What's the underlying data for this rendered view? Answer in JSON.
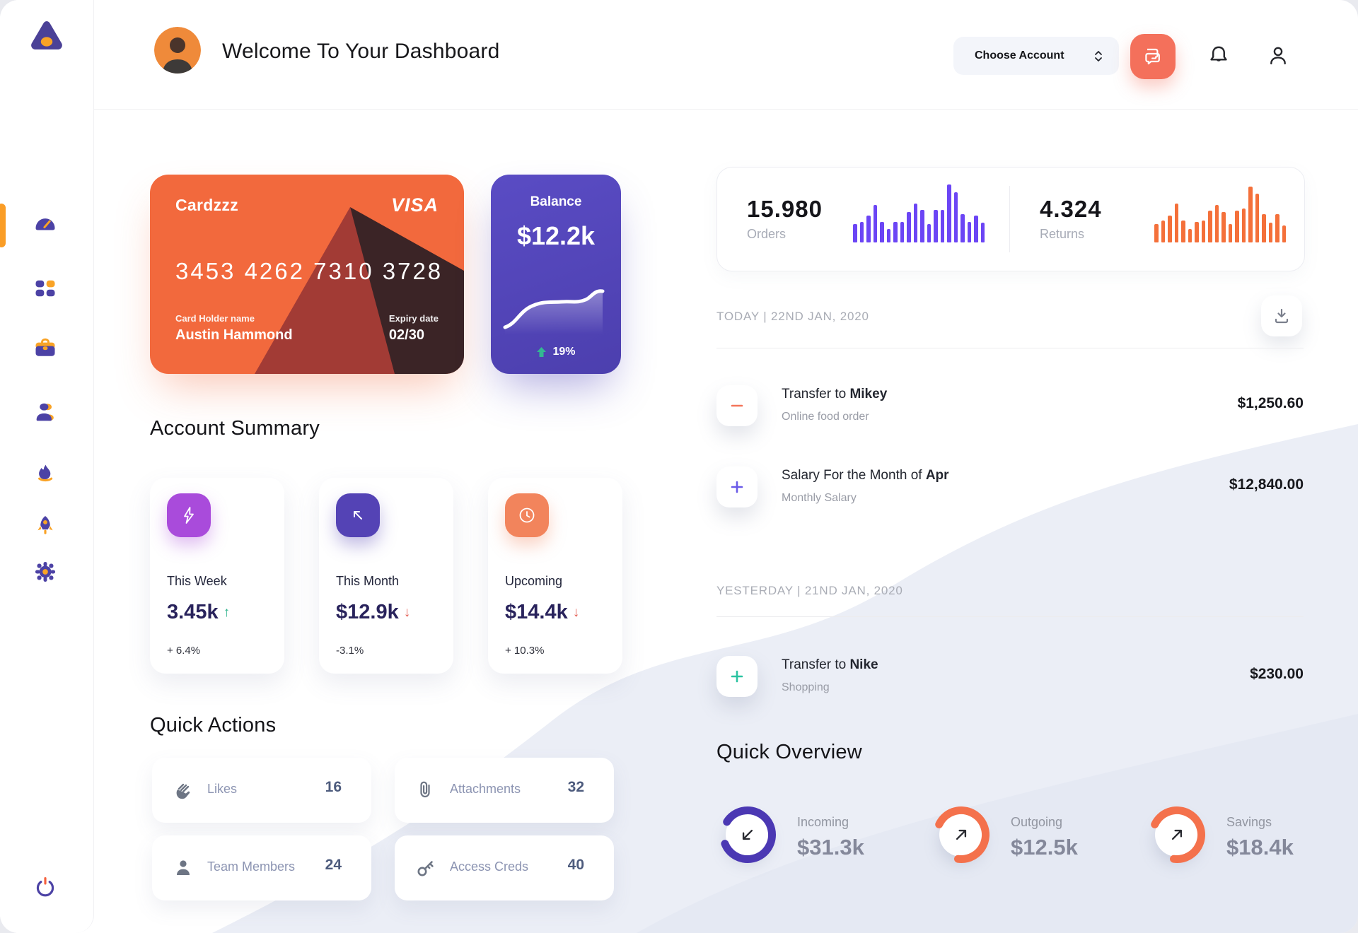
{
  "header": {
    "title": "Welcome To Your Dashboard",
    "account_select": "Choose Account",
    "icons": [
      "chat-icon",
      "bell-icon",
      "user-icon"
    ]
  },
  "sidebar": {
    "logo": "triangle-logo",
    "items": [
      {
        "icon": "gauge-icon",
        "name": "dashboard",
        "active": true
      },
      {
        "icon": "grid-icon",
        "name": "apps",
        "active": false
      },
      {
        "icon": "briefcase-icon",
        "name": "work",
        "active": false
      },
      {
        "icon": "users-icon",
        "name": "customers",
        "active": false
      },
      {
        "icon": "flame-icon",
        "name": "activity",
        "active": false
      },
      {
        "icon": "rocket-icon",
        "name": "launch",
        "active": false
      },
      {
        "icon": "gear-icon",
        "name": "settings",
        "active": false
      }
    ],
    "power": {
      "icon": "power-icon",
      "name": "logout"
    }
  },
  "credit_card": {
    "name": "Cardzzz",
    "brand": "VISA",
    "number": "3453 4262 7310 3728",
    "holder_label": "Card Holder name",
    "holder": "Austin Hammond",
    "expiry_label": "Expiry date",
    "expiry": "02/30",
    "color": "#f2693d"
  },
  "balance": {
    "label": "Balance",
    "value": "$12.2k",
    "change": "19%",
    "direction": "up",
    "color": "#5246b8"
  },
  "stats": {
    "orders": {
      "value": "15.980",
      "label": "Orders"
    },
    "returns": {
      "value": "4.324",
      "label": "Returns"
    }
  },
  "chart_data": [
    {
      "type": "bar",
      "title": "Orders mini bar chart",
      "color": "#6b45f5",
      "values": [
        30,
        34,
        44,
        62,
        34,
        22,
        34,
        34,
        50,
        64,
        54,
        30,
        54,
        54,
        95,
        82,
        46,
        34,
        44,
        32
      ]
    },
    {
      "type": "bar",
      "title": "Returns mini bar chart",
      "color": "#f4703a",
      "values": [
        30,
        36,
        44,
        64,
        36,
        22,
        34,
        36,
        52,
        62,
        50,
        30,
        52,
        56,
        92,
        80,
        46,
        32,
        46,
        28
      ]
    },
    {
      "type": "line",
      "title": "Balance trend sparkline",
      "color": "#ffffff",
      "values": [
        10,
        14,
        26,
        38,
        46,
        50,
        51,
        52,
        52,
        54,
        58,
        70,
        68
      ]
    }
  ],
  "summary": {
    "heading": "Account Summary",
    "cards": [
      {
        "icon": "bolt-icon",
        "chip_color": "#a94bdb",
        "label": "This Week",
        "value": "3.45k",
        "arrow": "↑",
        "arrow_color": "#2bb28a",
        "delta": "+ 6.4%"
      },
      {
        "icon": "arrow-up-left-icon",
        "chip_color": "#5443b5",
        "label": "This Month",
        "value": "$12.9k",
        "arrow": "↓",
        "arrow_color": "#e2574c",
        "delta": "-3.1%"
      },
      {
        "icon": "clock-icon",
        "chip_color": "#f2845c",
        "label": "Upcoming",
        "value": "$14.4k",
        "arrow": "↓",
        "arrow_color": "#e2574c",
        "delta": "+ 10.3%"
      }
    ]
  },
  "quick_actions": {
    "heading": "Quick Actions",
    "items": [
      {
        "icon": "clap-icon",
        "label": "Likes",
        "count": "16"
      },
      {
        "icon": "paperclip-icon",
        "label": "Attachments",
        "count": "32"
      },
      {
        "icon": "member-icon",
        "label": "Team Members",
        "count": "24"
      },
      {
        "icon": "key-icon",
        "label": "Access Creds",
        "count": "40"
      }
    ]
  },
  "transactions": {
    "today_label": "TODAY | 22ND JAN, 2020",
    "yesterday_label": "YESTERDAY | 21ND JAN, 2020",
    "download_icon": "download-icon",
    "today": [
      {
        "icon": "minus-icon",
        "icon_color": "#f4755a",
        "title_prefix": "Transfer to ",
        "title_bold": "Mikey",
        "subtitle": "Online food order",
        "amount": "$1,250.60"
      },
      {
        "icon": "plus-icon",
        "icon_color": "#6a5ae8",
        "title_prefix": "Salary For the Month of ",
        "title_bold": "Apr",
        "subtitle": "Monthly Salary",
        "amount": "$12,840.00"
      }
    ],
    "yesterday": [
      {
        "icon": "plus-icon",
        "icon_color": "#2bc3a1",
        "title_prefix": "Transfer to ",
        "title_bold": "Nike",
        "subtitle": "Shopping",
        "amount": "$230.00"
      }
    ]
  },
  "overview": {
    "heading": "Quick Overview",
    "items": [
      {
        "label": "Incoming",
        "value": "$31.3k",
        "ring_color": "#4b38b3",
        "percent": 85,
        "rotate": 212,
        "arrow": "down-left"
      },
      {
        "label": "Outgoing",
        "value": "$12.5k",
        "ring_color": "#f4714c",
        "percent": 70,
        "rotate": 205,
        "arrow": "up-right"
      },
      {
        "label": "Savings",
        "value": "$18.4k",
        "ring_color": "#f4714c",
        "percent": 70,
        "rotate": 205,
        "arrow": "up-right"
      }
    ]
  }
}
